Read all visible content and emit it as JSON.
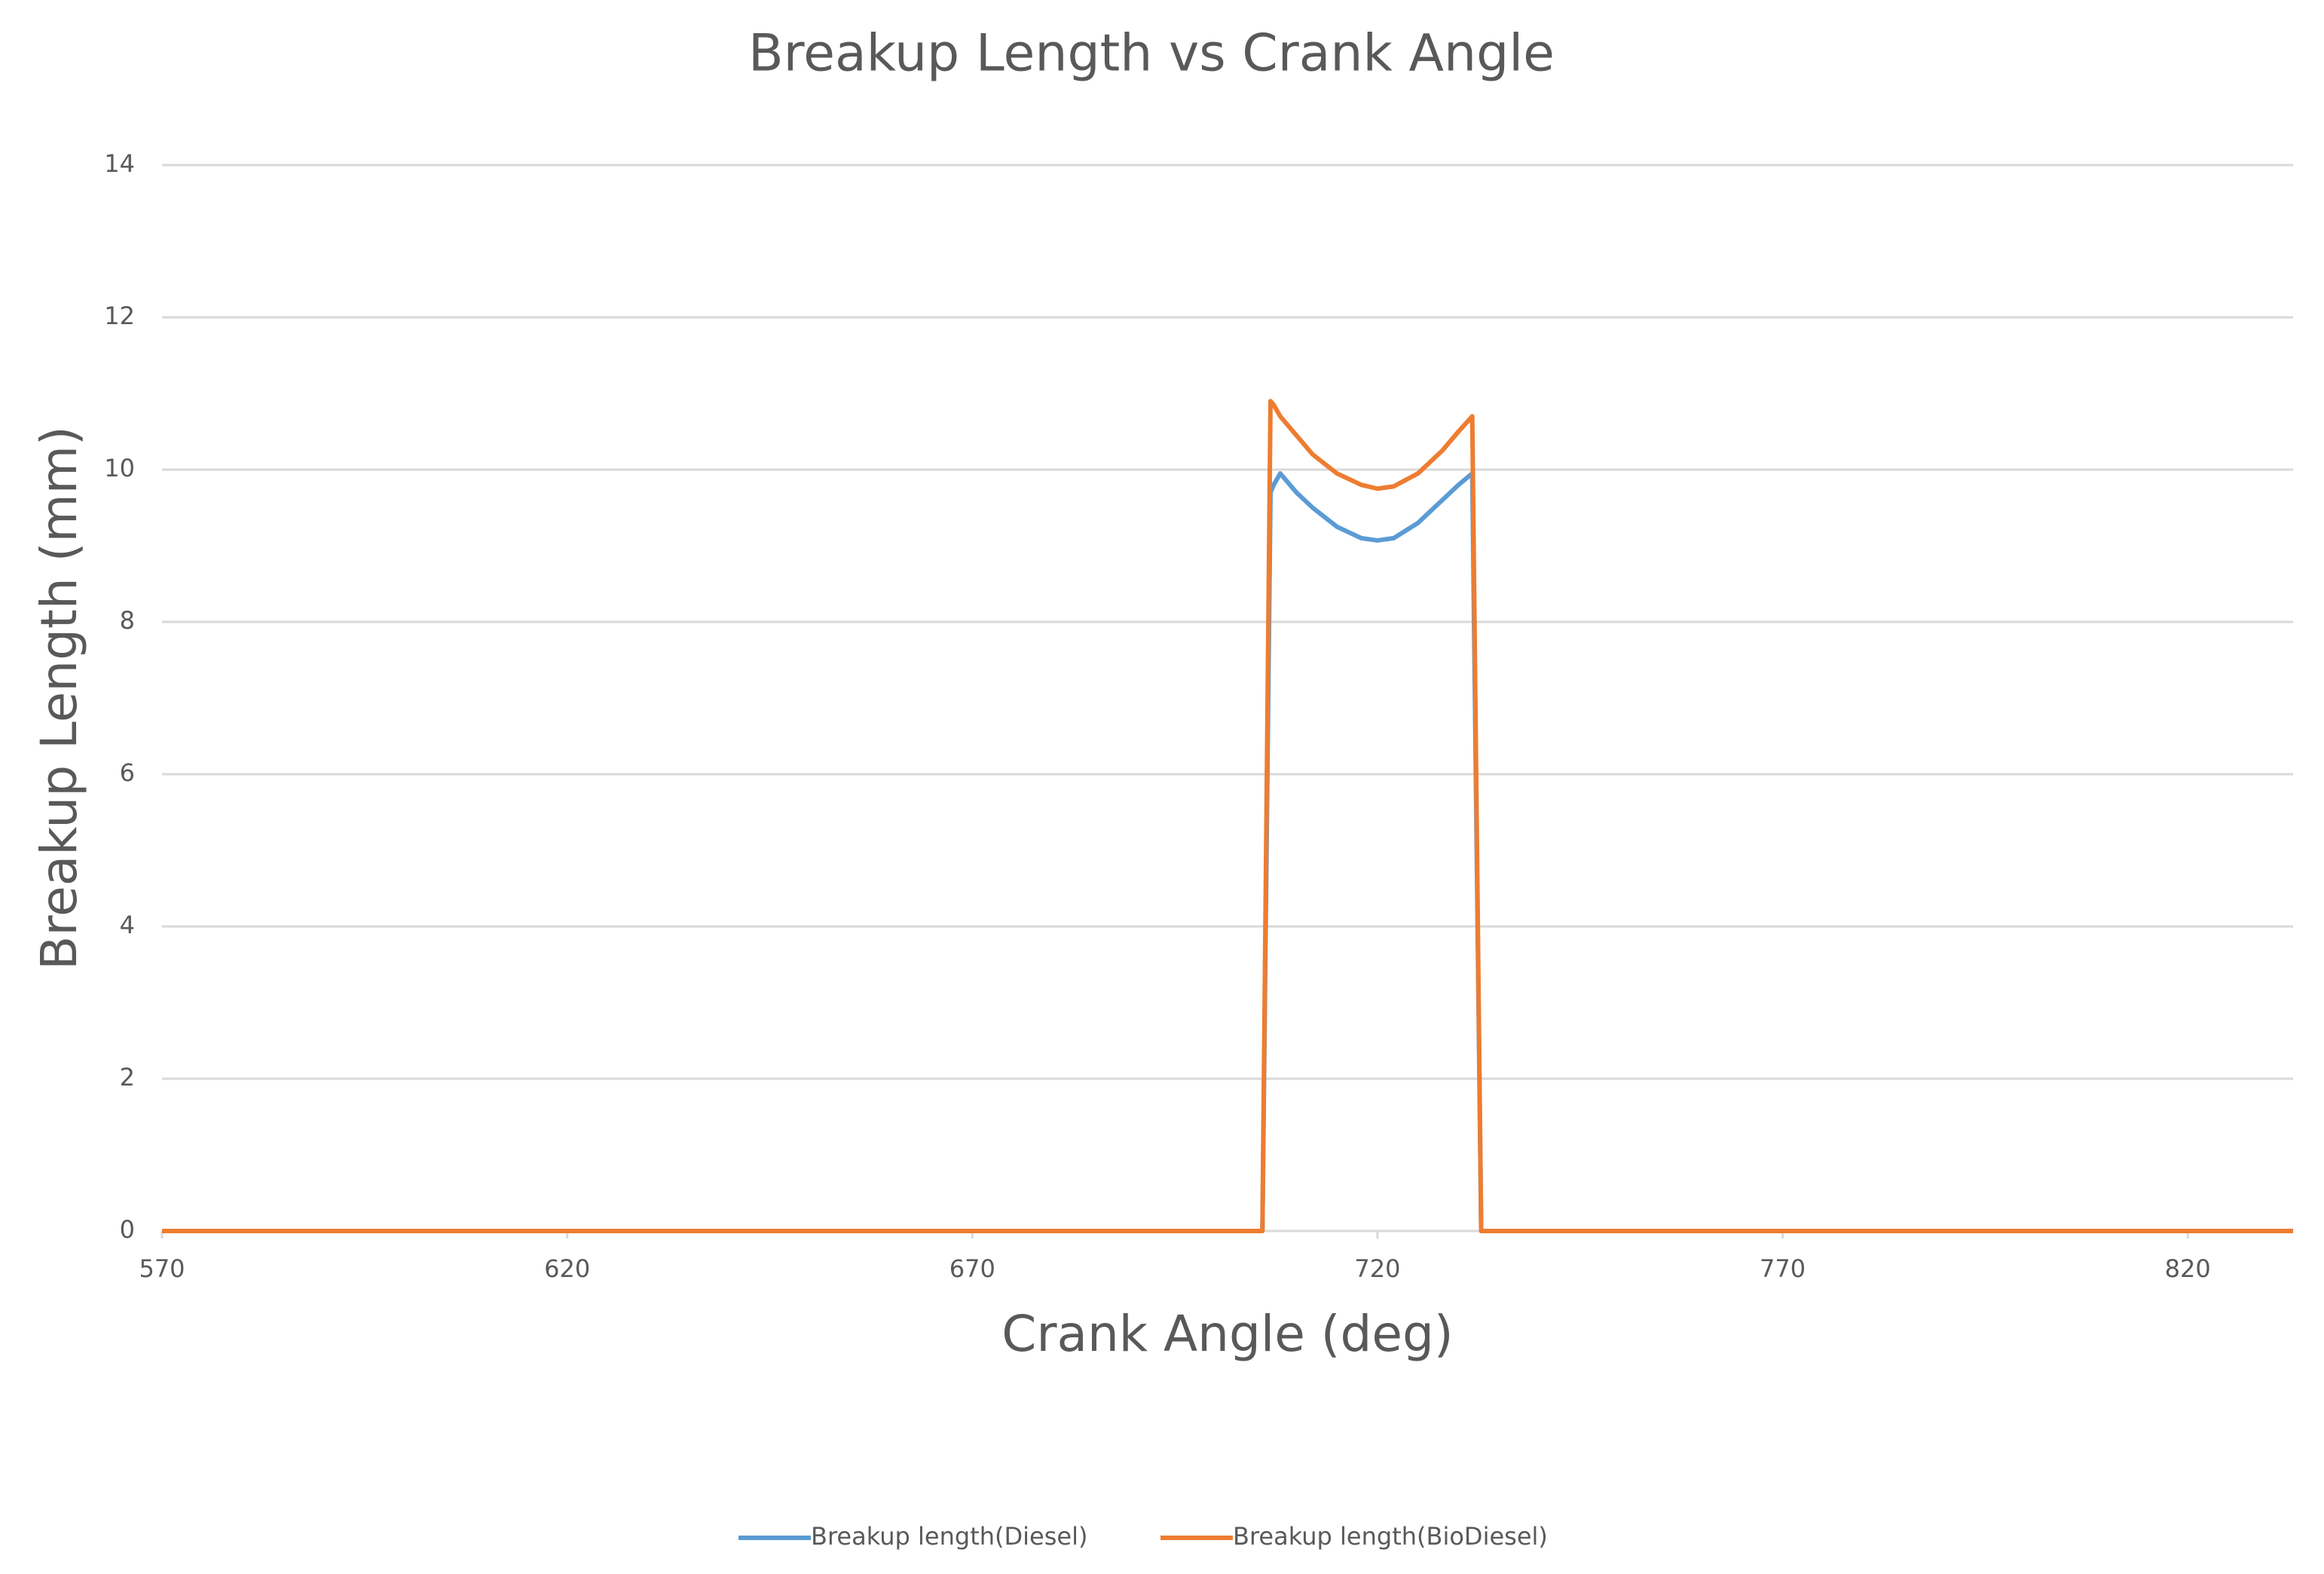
{
  "chart_data": {
    "type": "line",
    "title": "Breakup Length vs Crank Angle",
    "x_label": "Crank Angle (deg)",
    "y_label": "Breakup Length (mm)",
    "x": [
      570,
      705.8,
      706.8,
      707.2,
      708,
      710,
      712,
      715,
      718,
      720,
      722,
      725,
      728,
      730,
      731.7,
      732.8,
      833
    ],
    "series": [
      {
        "name": "Breakup length(Diesel)",
        "color": "#5b9bd5",
        "values": [
          0,
          0,
          9.7,
          9.8,
          9.95,
          9.7,
          9.5,
          9.25,
          9.1,
          9.07,
          9.1,
          9.3,
          9.6,
          9.8,
          9.95,
          0,
          0
        ]
      },
      {
        "name": "Breakup length(BioDiesel)",
        "color": "#ed7d31",
        "values": [
          0,
          0,
          10.9,
          10.85,
          10.7,
          10.45,
          10.2,
          9.95,
          9.8,
          9.75,
          9.78,
          9.95,
          10.25,
          10.5,
          10.7,
          0,
          0
        ]
      }
    ],
    "xlim": [
      570,
      833
    ],
    "ylim": [
      0,
      14
    ],
    "xticks": [
      570,
      620,
      670,
      720,
      770,
      820
    ],
    "yticks": [
      0,
      2,
      4,
      6,
      8,
      10,
      12,
      14
    ],
    "grid": true,
    "legend": "bottom"
  }
}
